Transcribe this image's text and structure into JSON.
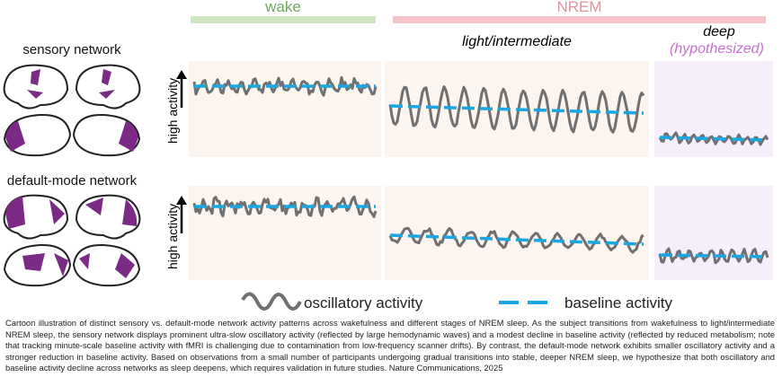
{
  "stages": {
    "wake": "wake",
    "nrem": "NREM",
    "light": "light/intermediate",
    "deep": "deep",
    "hypothesized": "(hypothesized)"
  },
  "networks": {
    "sensory": "sensory network",
    "default_mode": "default-mode network"
  },
  "y_axis_label": "high activity",
  "legend": {
    "oscillatory": "oscillatory activity",
    "baseline": "baseline activity"
  },
  "colors": {
    "wake": "#cfe6c3",
    "nrem": "#f6c4c8",
    "wake_text": "#6fa85e",
    "nrem_text": "#e98f98",
    "panel_bg": "#fcf4ef",
    "deep_bg": "#f6eefa",
    "signal": "#707070",
    "baseline": "#1aa6e0",
    "network": "#7b2a86",
    "hypothesized": "#c86fcf"
  },
  "caption": "Cartoon illustration of distinct sensory vs. default-mode network activity patterns across wakefulness and different stages of NREM sleep. As the subject transitions from wakefulness to light/intermediate NREM sleep, the sensory network displays prominent ultra-slow oscillatory activity (reflected by large hemodynamic waves) and a modest decline in baseline activity (reflected by reduced metabolism; note that tracking minute-scale baseline activity with fMRI is challenging due to contamination from low-frequency scanner drifts). By contrast, the default-mode network exhibits smaller oscillatory activity and a stronger reduction in baseline activity. Based on observations from a small number of participants undergoing gradual transitions into stable, deeper NREM sleep, we hypothesize that both oscillatory and baseline activity decline across networks as sleep deepens, which requires validation in future studies. Nature Communications, 2025"
}
